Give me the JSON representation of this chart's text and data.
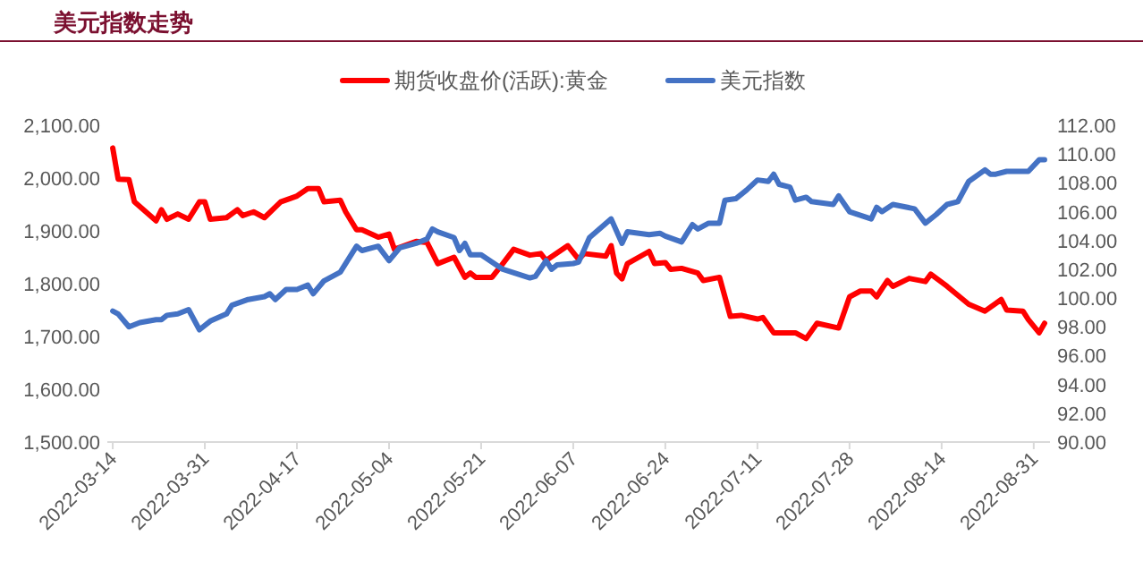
{
  "chart_data": {
    "type": "line",
    "title": "美元指数走势",
    "legend": "top",
    "grid": false,
    "marker": "none",
    "line_style": "solid",
    "xlim": [
      "2022-03-13",
      "2022-09-03"
    ],
    "xticks": [
      "2022-03-14",
      "2022-03-31",
      "2022-04-17",
      "2022-05-04",
      "2022-05-21",
      "2022-06-07",
      "2022-06-24",
      "2022-07-11",
      "2022-07-28",
      "2022-08-14",
      "2022-08-31"
    ],
    "ylim": [
      1500,
      2100
    ],
    "yticks": [
      {
        "value": 1500,
        "label": "1,500.00"
      },
      {
        "value": 1600,
        "label": "1,600.00"
      },
      {
        "value": 1700,
        "label": "1,700.00"
      },
      {
        "value": 1800,
        "label": "1,800.00"
      },
      {
        "value": 1900,
        "label": "1,900.00"
      },
      {
        "value": 2000,
        "label": "2,000.00"
      },
      {
        "value": 2100,
        "label": "2,100.00"
      }
    ],
    "y2lim": [
      90,
      112
    ],
    "y2ticks": [
      {
        "value": 90,
        "label": "90.00"
      },
      {
        "value": 92,
        "label": "92.00"
      },
      {
        "value": 94,
        "label": "94.00"
      },
      {
        "value": 96,
        "label": "96.00"
      },
      {
        "value": 98,
        "label": "98.00"
      },
      {
        "value": 100,
        "label": "100.00"
      },
      {
        "value": 102,
        "label": "102.00"
      },
      {
        "value": 104,
        "label": "104.00"
      },
      {
        "value": 106,
        "label": "106.00"
      },
      {
        "value": 108,
        "label": "108.00"
      },
      {
        "value": 110,
        "label": "110.00"
      },
      {
        "value": 112,
        "label": "112.00"
      }
    ],
    "series": [
      {
        "name": "期货收盘价(活跃):黄金",
        "color": "#ff0000",
        "axis": "y",
        "x": [
          "2022-03-14",
          "2022-03-15",
          "2022-03-17",
          "2022-03-18",
          "2022-03-22",
          "2022-03-23",
          "2022-03-24",
          "2022-03-26",
          "2022-03-28",
          "2022-03-30",
          "2022-03-31",
          "2022-04-01",
          "2022-04-04",
          "2022-04-06",
          "2022-04-07",
          "2022-04-09",
          "2022-04-11",
          "2022-04-14",
          "2022-04-17",
          "2022-04-19",
          "2022-04-21",
          "2022-04-22",
          "2022-04-25",
          "2022-04-26",
          "2022-04-28",
          "2022-04-29",
          "2022-05-02",
          "2022-05-04",
          "2022-05-05",
          "2022-05-09",
          "2022-05-11",
          "2022-05-13",
          "2022-05-16",
          "2022-05-18",
          "2022-05-19",
          "2022-05-20",
          "2022-05-23",
          "2022-05-25",
          "2022-05-27",
          "2022-05-30",
          "2022-06-01",
          "2022-06-02",
          "2022-06-06",
          "2022-06-08",
          "2022-06-09",
          "2022-06-13",
          "2022-06-14",
          "2022-06-15",
          "2022-06-16",
          "2022-06-17",
          "2022-06-21",
          "2022-06-22",
          "2022-06-24",
          "2022-06-25",
          "2022-06-27",
          "2022-06-30",
          "2022-07-01",
          "2022-07-04",
          "2022-07-06",
          "2022-07-08",
          "2022-07-11",
          "2022-07-12",
          "2022-07-14",
          "2022-07-18",
          "2022-07-20",
          "2022-07-22",
          "2022-07-26",
          "2022-07-28",
          "2022-07-30",
          "2022-08-01",
          "2022-08-02",
          "2022-08-04",
          "2022-08-05",
          "2022-08-08",
          "2022-08-11",
          "2022-08-12",
          "2022-08-15",
          "2022-08-19",
          "2022-08-22",
          "2022-08-25",
          "2022-08-26",
          "2022-08-29",
          "2022-08-30",
          "2022-09-01",
          "2022-09-02"
        ],
        "values": [
          2057,
          1998,
          1997,
          1955,
          1919,
          1940,
          1922,
          1932,
          1922,
          1955,
          1955,
          1922,
          1925,
          1940,
          1929,
          1936,
          1925,
          1955,
          1966,
          1980,
          1980,
          1955,
          1958,
          1936,
          1902,
          1902,
          1888,
          1894,
          1865,
          1880,
          1878,
          1838,
          1850,
          1812,
          1820,
          1812,
          1812,
          1838,
          1865,
          1854,
          1857,
          1844,
          1872,
          1846,
          1857,
          1852,
          1872,
          1820,
          1809,
          1838,
          1861,
          1838,
          1840,
          1827,
          1829,
          1820,
          1806,
          1812,
          1738,
          1740,
          1733,
          1736,
          1707,
          1707,
          1696,
          1725,
          1716,
          1775,
          1786,
          1786,
          1775,
          1806,
          1795,
          1810,
          1804,
          1818,
          1795,
          1761,
          1748,
          1770,
          1750,
          1748,
          1732,
          1707,
          1725
        ]
      },
      {
        "name": "美元指数",
        "color": "#4472c4",
        "axis": "y2",
        "x": [
          "2022-03-14",
          "2022-03-15",
          "2022-03-17",
          "2022-03-19",
          "2022-03-22",
          "2022-03-23",
          "2022-03-24",
          "2022-03-26",
          "2022-03-28",
          "2022-03-30",
          "2022-04-01",
          "2022-04-04",
          "2022-04-05",
          "2022-04-08",
          "2022-04-11",
          "2022-04-12",
          "2022-04-13",
          "2022-04-15",
          "2022-04-17",
          "2022-04-19",
          "2022-04-20",
          "2022-04-22",
          "2022-04-25",
          "2022-04-28",
          "2022-04-29",
          "2022-05-02",
          "2022-05-04",
          "2022-05-06",
          "2022-05-09",
          "2022-05-11",
          "2022-05-12",
          "2022-05-13",
          "2022-05-16",
          "2022-05-17",
          "2022-05-18",
          "2022-05-19",
          "2022-05-21",
          "2022-05-25",
          "2022-05-30",
          "2022-05-31",
          "2022-06-02",
          "2022-06-03",
          "2022-06-04",
          "2022-06-07",
          "2022-06-08",
          "2022-06-10",
          "2022-06-14",
          "2022-06-16",
          "2022-06-17",
          "2022-06-21",
          "2022-06-23",
          "2022-06-24",
          "2022-06-27",
          "2022-06-29",
          "2022-06-30",
          "2022-07-02",
          "2022-07-04",
          "2022-07-05",
          "2022-07-07",
          "2022-07-09",
          "2022-07-11",
          "2022-07-13",
          "2022-07-14",
          "2022-07-15",
          "2022-07-17",
          "2022-07-18",
          "2022-07-20",
          "2022-07-21",
          "2022-07-25",
          "2022-07-26",
          "2022-07-28",
          "2022-08-01",
          "2022-08-02",
          "2022-08-03",
          "2022-08-05",
          "2022-08-09",
          "2022-08-11",
          "2022-08-13",
          "2022-08-15",
          "2022-08-17",
          "2022-08-19",
          "2022-08-22",
          "2022-08-23",
          "2022-08-24",
          "2022-08-26",
          "2022-08-30",
          "2022-09-01",
          "2022-09-02"
        ],
        "values": [
          99.1,
          98.9,
          98.0,
          98.3,
          98.5,
          98.5,
          98.8,
          98.9,
          99.2,
          97.8,
          98.4,
          98.9,
          99.5,
          99.9,
          100.1,
          100.3,
          99.9,
          100.6,
          100.6,
          100.9,
          100.3,
          101.2,
          101.8,
          103.6,
          103.3,
          103.6,
          102.6,
          103.5,
          103.8,
          104.1,
          104.8,
          104.6,
          104.2,
          103.3,
          103.8,
          103.0,
          103.0,
          102.0,
          101.4,
          101.5,
          102.6,
          102.0,
          102.3,
          102.4,
          102.5,
          104.2,
          105.5,
          103.8,
          104.6,
          104.4,
          104.5,
          104.3,
          103.9,
          105.1,
          104.8,
          105.2,
          105.2,
          106.8,
          106.9,
          107.5,
          108.2,
          108.1,
          108.6,
          107.9,
          107.7,
          106.8,
          107.0,
          106.7,
          106.5,
          107.1,
          106.0,
          105.5,
          106.3,
          106.0,
          106.5,
          106.2,
          105.2,
          105.8,
          106.5,
          106.7,
          108.1,
          108.9,
          108.6,
          108.6,
          108.8,
          108.8,
          109.6,
          109.6
        ]
      }
    ]
  }
}
